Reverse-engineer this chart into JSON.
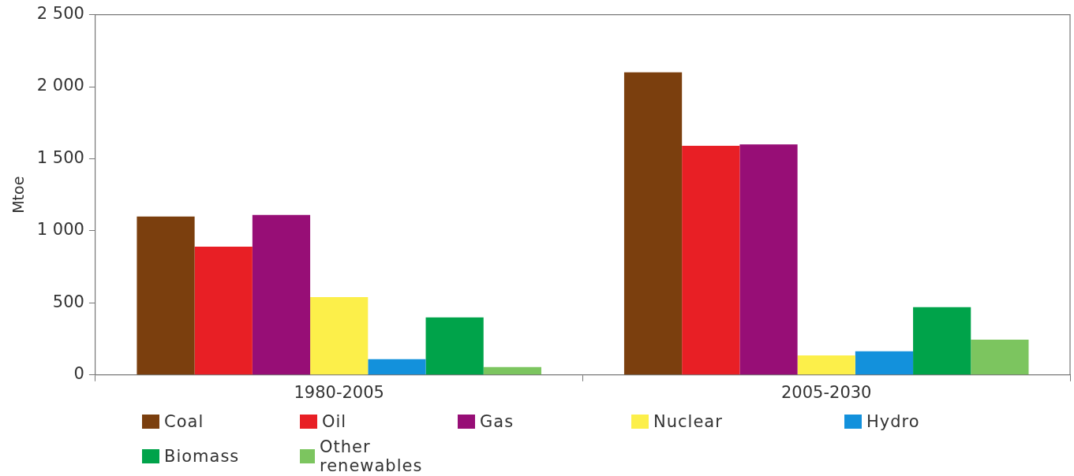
{
  "chart_data": {
    "type": "bar",
    "ylabel": "Mtoe",
    "categories": [
      "1980-2005",
      "2005-2030"
    ],
    "series": [
      {
        "name": "Coal",
        "color": "#7b3f0e",
        "values": [
          1100,
          2100
        ]
      },
      {
        "name": "Oil",
        "color": "#e81f25",
        "values": [
          890,
          1590
        ]
      },
      {
        "name": "Gas",
        "color": "#970e76",
        "values": [
          1110,
          1600
        ]
      },
      {
        "name": "Nuclear",
        "color": "#fcef4a",
        "values": [
          540,
          135
        ]
      },
      {
        "name": "Hydro",
        "color": "#1391dc",
        "values": [
          110,
          165
        ]
      },
      {
        "name": "Biomass",
        "color": "#00a34a",
        "values": [
          400,
          470
        ]
      },
      {
        "name": "Other renewables",
        "color": "#7cc55f",
        "values": [
          55,
          245
        ]
      }
    ],
    "ylim": [
      0,
      2500
    ],
    "yticks": [
      {
        "value": 0,
        "label": "0"
      },
      {
        "value": 500,
        "label": "500"
      },
      {
        "value": 1000,
        "label": "1 000"
      },
      {
        "value": 1500,
        "label": "1 500"
      },
      {
        "value": 2000,
        "label": "2 000"
      },
      {
        "value": 2500,
        "label": "2 500"
      }
    ],
    "grid": false,
    "legend": "bottom"
  }
}
